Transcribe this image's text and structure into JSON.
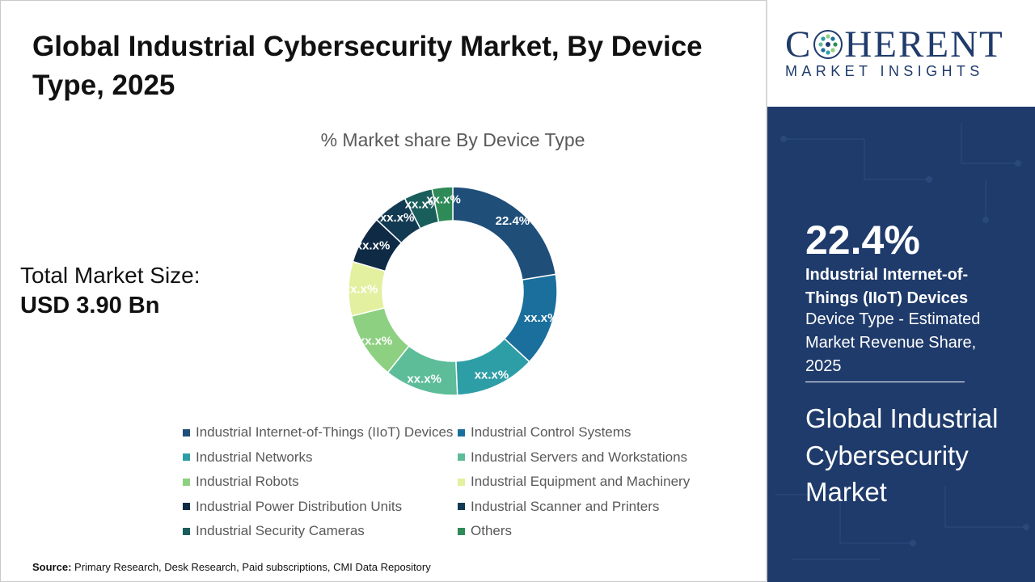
{
  "header": {
    "title": "Global Industrial Cybersecurity Market, By Device Type, 2025"
  },
  "total_market": {
    "label": "Total Market Size:",
    "value": "USD 3.90 Bn"
  },
  "chart_data": {
    "type": "pie",
    "title": "% Market share By Device Type",
    "donut": true,
    "categories": [
      "Industrial Internet-of-Things (IIoT) Devices",
      "Industrial Control Systems",
      "Industrial Networks",
      "Industrial Servers and Workstations",
      "Industrial Robots",
      "Industrial Equipment and Machinery",
      "Industrial Power Distribution Units",
      "Industrial Scanner and Printers",
      "Industrial Security Cameras",
      "Others"
    ],
    "values": [
      22.4,
      14.4,
      12.4,
      11.4,
      10.4,
      8.4,
      7.4,
      5.4,
      4.4,
      3.2
    ],
    "data_labels": [
      "22.4%",
      "xx.x%",
      "xx.x%",
      "xx.x%",
      "xx.x%",
      "xx.x%",
      "xx.x%",
      "xx.x%",
      "xx.x%",
      "xx.x%"
    ],
    "colors": [
      "#1f4e79",
      "#1a6f9c",
      "#2e9ea6",
      "#5dbd98",
      "#8ed081",
      "#e2f0a0",
      "#0f2a45",
      "#123a52",
      "#1a5e5c",
      "#2e8b57"
    ],
    "legend_position": "bottom"
  },
  "source": {
    "label": "Source:",
    "text": "Primary Research, Desk Research, Paid subscriptions, CMI Data Repository"
  },
  "logo": {
    "main_prefix": "C",
    "main_suffix": "HERENT",
    "sub": "MARKET INSIGHTS",
    "color": "#1f3b6b"
  },
  "side_panel": {
    "percent": "22.4%",
    "highlight": "Industrial Internet-of-Things (IIoT) Devices",
    "description": "Device Type - Estimated Market Revenue Share, 2025",
    "market_name": "Global Industrial Cybersecurity Market",
    "background": "#1f3b6b"
  }
}
